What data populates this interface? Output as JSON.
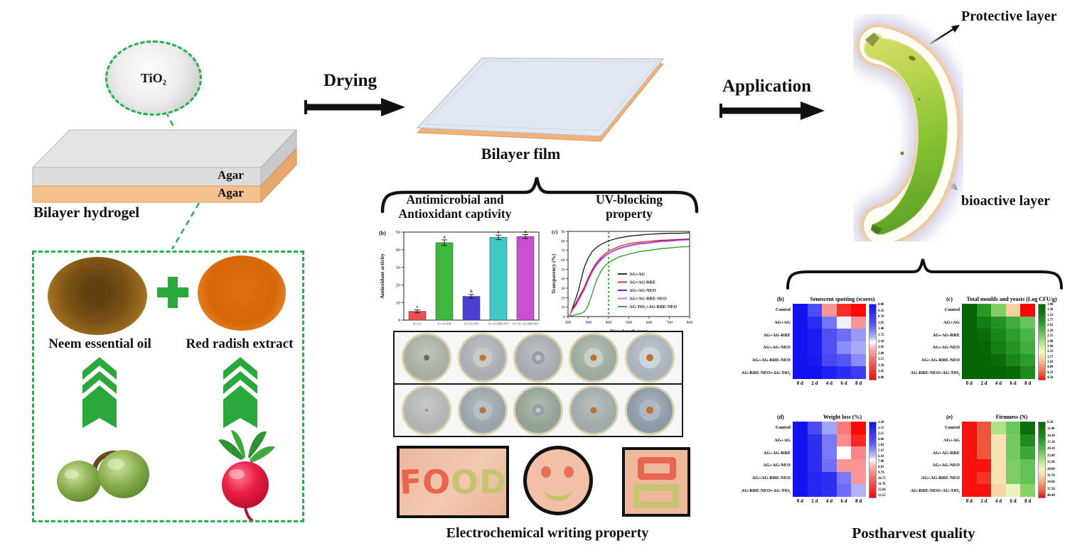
{
  "labels": {
    "tio2": "TiO₂",
    "agar_top": "Agar",
    "agar_bottom": "Agar",
    "bilayer_hydrogel": "Bilayer hydrogel",
    "neem_oil": "Neem essential oil",
    "red_radish": "Red radish extract",
    "drying": "Drying",
    "bilayer_film": "Bilayer film",
    "antimicrobial_1": "Antimicrobial and",
    "antimicrobial_2": "Antioxidant captivity",
    "uv_1": "UV-blocking",
    "uv_2": "property",
    "electrochemical": "Electrochemical writing property",
    "application": "Application",
    "protective_layer": "Protective layer",
    "bioactive_layer": "bioactive layer",
    "postharvest": "Postharvest quality"
  },
  "colors": {
    "accent_green": "#1eb14e",
    "arrow_black": "#111111",
    "film_top": "#e2e8f1",
    "film_edge": "#f2b277",
    "slab_gray_top": "#e4e4e6",
    "slab_gray_front": "#dcdcde",
    "slab_orange_front": "#f4c08c"
  },
  "writing": {
    "food_letters": [
      {
        "char": "F",
        "color": "#e8654f"
      },
      {
        "char": "O",
        "color": "#e8654f"
      },
      {
        "char": "O",
        "color": "#c6c472"
      },
      {
        "char": "D",
        "color": "#c6c472"
      }
    ],
    "smiley": {
      "eye_color": "#e8705a",
      "smile_color": "#c8c46a",
      "skin": "#f2c0a6"
    },
    "rects": {
      "top_color": "#e8654f",
      "bottom_color": "#c6c472",
      "skin": "#eeb89c"
    }
  },
  "petri": {
    "rows": [
      [
        {
          "base": "#a7afa3",
          "dot": "#66705c",
          "dot_size": 8,
          "halo": null
        },
        {
          "base": "#a9aeb3",
          "dot": "#bf7434",
          "dot_size": 9,
          "halo": "#c6cbc9"
        },
        {
          "base": "#a6abb0",
          "dot": "ring",
          "dot_size": 18,
          "halo": null
        },
        {
          "base": "#9cab9e",
          "dot": "#b87034",
          "dot_size": 9,
          "halo": "#c9d0c7"
        },
        {
          "base": "#a9b3bc",
          "dot": "#bf7434",
          "dot_size": 10,
          "halo": "#ccd5dc"
        }
      ],
      [
        {
          "base": "#b0b4b2",
          "dot": "#9aa08e",
          "dot_size": 5,
          "halo": null
        },
        {
          "base": "#98a3ab",
          "dot": "#b87434",
          "dot_size": 9,
          "halo": "#b6c0c6"
        },
        {
          "base": "#93a294",
          "dot": "ring",
          "dot_size": 17,
          "halo": null
        },
        {
          "base": "#a0aaa8",
          "dot": "#b87434",
          "dot_size": 9,
          "halo": null
        },
        {
          "base": "#8c99a7",
          "dot": "#b87434",
          "dot_size": 10,
          "halo": "#aeb9c4"
        }
      ]
    ]
  },
  "chart_data": [
    {
      "id": "antioxidant",
      "type": "bar",
      "tag": "(b)",
      "title": "",
      "categories": [
        "AG+AG",
        "AG+AG-RRE",
        "AG+AG-NEO",
        "AG+AG-RRE-NEO",
        "AG-TiO₂+AG-RRE-NEO"
      ],
      "values": [
        5,
        44,
        13.5,
        47,
        47.5
      ],
      "errors": [
        0.8,
        1.6,
        1.0,
        1.3,
        1.1
      ],
      "sig_letters": [
        "c",
        "a",
        "b",
        "a",
        "a"
      ],
      "bar_colors": [
        "#ee4f4f",
        "#3cb93c",
        "#4a3fd4",
        "#3fc8c8",
        "#c84fd0"
      ],
      "ylabel": "Antioxidant activity",
      "ylim": [
        0,
        50
      ],
      "yticks": [
        0,
        10,
        20,
        30,
        40,
        50
      ]
    },
    {
      "id": "uv",
      "type": "line",
      "tag": "(c)",
      "xlabel": "Wavelength (nm)",
      "ylabel": "Transparency (%)",
      "xlim": [
        200,
        800
      ],
      "ylim": [
        0,
        90
      ],
      "xticks": [
        200,
        300,
        400,
        500,
        600,
        700,
        800
      ],
      "yticks": [
        0,
        10,
        20,
        30,
        40,
        50,
        60,
        70,
        80,
        90
      ],
      "vline": {
        "x": 400,
        "color": "#2db82d"
      },
      "legend_position": "lower right",
      "x": [
        200,
        210,
        220,
        230,
        240,
        250,
        260,
        270,
        280,
        290,
        300,
        320,
        340,
        360,
        380,
        400,
        450,
        500,
        550,
        600,
        650,
        700,
        750,
        800
      ],
      "series": [
        {
          "name": "AG+AG",
          "color": "#1a1a1a",
          "values": [
            0,
            2,
            8,
            14,
            20,
            27,
            35,
            44,
            52,
            57,
            62,
            69,
            73,
            76,
            78,
            80,
            83,
            85,
            86,
            87,
            87.5,
            88,
            88,
            88.5
          ]
        },
        {
          "name": "AG+AG-RRE",
          "color": "#e02020",
          "values": [
            0,
            2,
            7,
            11,
            15,
            19,
            23,
            27,
            31,
            36,
            41,
            50,
            57,
            62,
            66,
            69,
            74,
            77,
            78.5,
            79.5,
            80.5,
            81,
            81.5,
            82
          ]
        },
        {
          "name": "AG+AG-NEO",
          "color": "#2020dd",
          "values": [
            0,
            2,
            6,
            10,
            13,
            17,
            21,
            25,
            29,
            34,
            39,
            48,
            55,
            60,
            64,
            67,
            72,
            75,
            77,
            78,
            79.5,
            80,
            81,
            81.5
          ]
        },
        {
          "name": "AG+AG-RRE-NEO",
          "color": "#e858d8",
          "values": [
            0,
            2,
            6,
            9,
            12,
            16,
            20,
            24,
            28,
            33,
            38,
            47,
            54,
            59,
            63,
            66.5,
            71.5,
            74.5,
            76.5,
            77.5,
            79,
            79.5,
            80.5,
            81
          ]
        },
        {
          "name": "AG-TiO₂+AG-RRE-NEO",
          "color": "#2d9b2d",
          "values": [
            0,
            0.5,
            1,
            1.5,
            2,
            2.5,
            3,
            4,
            5,
            8,
            12,
            25,
            38,
            47,
            53,
            57,
            63,
            66,
            68.5,
            70,
            71.5,
            72.5,
            73.5,
            74
          ]
        }
      ]
    },
    {
      "id": "senescent",
      "type": "heatmap",
      "tag": "(b)",
      "title": "Senescent spotting (scores)",
      "rows": [
        "Control",
        "AG+AG",
        "AG+AG-RRE",
        "AG+AG-NEO",
        "AG+AG-RRE-NEO",
        "AG-RRE-NEO+AG-TiO₂"
      ],
      "cols": [
        "0 d",
        "2 d",
        "4 d",
        "6 d",
        "8 d"
      ],
      "values": [
        [
          0,
          0.9,
          2.6,
          3.6,
          4.0
        ],
        [
          0,
          0.4,
          1.3,
          1.95,
          2.6
        ],
        [
          0,
          0.15,
          0.95,
          1.25,
          1.55
        ],
        [
          0,
          0.15,
          0.95,
          1.45,
          1.65
        ],
        [
          0,
          0.1,
          0.85,
          1.05,
          1.45
        ],
        [
          0,
          0,
          0.2,
          0.4,
          0.65
        ]
      ],
      "domain": [
        0,
        4
      ],
      "colormap": "bwr",
      "colorbar_ticks": [
        "0.00",
        "0.35",
        "0.70",
        "1.05",
        "1.40",
        "1.75",
        "2.10",
        "2.45",
        "2.80",
        "3.15",
        "3.50",
        "3.85",
        "4.00"
      ]
    },
    {
      "id": "moulds",
      "type": "heatmap",
      "tag": "(c)",
      "title": "Total moulds and yeasts (Log CFU/g)",
      "rows": [
        "Control",
        "AG+AG",
        "AG+AG-RRE",
        "AG+AG-NEO",
        "AG+AG-RRE-NEO",
        "AG-RRE-NEO+AG-TiO₂"
      ],
      "cols": [
        "0 d",
        "2 d",
        "4 d",
        "6 d",
        "8 d"
      ],
      "values": [
        [
          1.0,
          1.8,
          2.5,
          3.5,
          4.5
        ],
        [
          1.0,
          1.4,
          1.75,
          2.05,
          2.35
        ],
        [
          1.0,
          1.15,
          1.55,
          1.85,
          2.15
        ],
        [
          1.0,
          1.05,
          1.45,
          1.75,
          2.05
        ],
        [
          1.0,
          1.0,
          1.15,
          1.55,
          1.85
        ],
        [
          1.0,
          1.0,
          1.0,
          1.1,
          1.65
        ]
      ],
      "domain": [
        1,
        4.5
      ],
      "colormap": "green_red",
      "colorbar_ticks": [
        "1.00",
        "1.26",
        "1.52",
        "1.77",
        "2.03",
        "2.29",
        "2.55",
        "2.80",
        "3.06",
        "3.32",
        "3.57",
        "3.83",
        "4.09",
        "4.35",
        "4.50"
      ]
    },
    {
      "id": "weightloss",
      "type": "heatmap",
      "tag": "(d)",
      "title": "Weight loss (%)",
      "rows": [
        "Control",
        "AG+AG",
        "AG+AG-RRE",
        "AG+AG-NEO",
        "AG+AG-RRE-NEO",
        "AG-RRE-NEO+AG-TiO₂"
      ],
      "cols": [
        "0 d",
        "2 d",
        "4 d",
        "6 d",
        "8 d"
      ],
      "values": [
        [
          0,
          3.0,
          5.5,
          9.5,
          13.5
        ],
        [
          0,
          1.5,
          4.5,
          9.0,
          12.5
        ],
        [
          0,
          1.5,
          4.5,
          6.8,
          9.2
        ],
        [
          0,
          1.5,
          4.3,
          8.8,
          8.8
        ],
        [
          0,
          1.0,
          1.5,
          4.5,
          8.8
        ],
        [
          0,
          1.0,
          1.5,
          4.2,
          5.8
        ]
      ],
      "domain": [
        0,
        13.55
      ],
      "colormap": "bwr",
      "colorbar_ticks": [
        "1.20",
        "2.15",
        "3.11",
        "4.06",
        "5.02",
        "5.97",
        "6.93",
        "7.88",
        "8.83",
        "9.79",
        "10.75",
        "11.70",
        "12.66",
        "13.55"
      ]
    },
    {
      "id": "firmness",
      "type": "heatmap",
      "tag": "(e)",
      "title": "Firmness (N)",
      "rows": [
        "Control",
        "AG+AG",
        "AG+AG-RRE",
        "AG+AG-NEO",
        "AG+AG-RRE-NEO",
        "AG-RRE-NEO+AG-TiO₂"
      ],
      "cols": [
        "0 d",
        "2 d",
        "4 d",
        "6 d",
        "8 d"
      ],
      "values": [
        [
          40,
          38,
          24.5,
          21,
          10
        ],
        [
          40,
          38,
          30,
          21.5,
          14.5
        ],
        [
          40,
          38,
          30,
          21.5,
          17.5
        ],
        [
          40,
          40,
          30,
          22,
          20.5
        ],
        [
          40,
          39,
          30,
          22,
          20.5
        ],
        [
          40,
          40,
          31,
          28,
          22.5
        ]
      ],
      "domain": [
        8.5,
        40.4
      ],
      "colormap": "green_red",
      "colorbar_ticks": [
        "8.50",
        "11.40",
        "14.30",
        "17.20",
        "20.10",
        "23.00",
        "25.90",
        "28.80",
        "31.70",
        "34.60",
        "37.50",
        "40.40"
      ]
    }
  ]
}
